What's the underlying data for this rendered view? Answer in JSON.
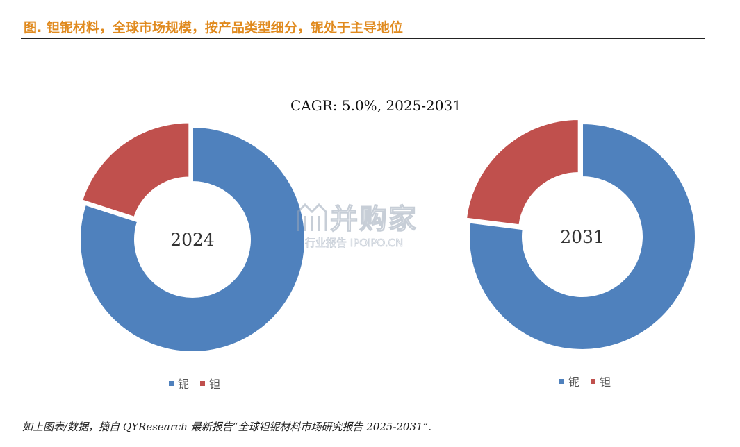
{
  "header": {
    "title": "图.  钽铌材料，全球市场规模，按产品类型细分，铌处于主导地位"
  },
  "cagr_text": "CAGR:   5.0%, 2025-2031",
  "watermark": {
    "main": "并购家",
    "sub": "行业报告  IPOIPO.CN"
  },
  "footnote": "如上图表/数据，摘自 QYResearch 最新报告“全球钽铌材料市场研究报告 2025-2031”.",
  "colors": {
    "niobium": "#4f81bd",
    "tantalum": "#c0504d",
    "title": "#e08a1e"
  },
  "chart_data": [
    {
      "type": "pie",
      "center_label": "2024",
      "categories": [
        "铌",
        "钽"
      ],
      "values": [
        80,
        20
      ],
      "legend": "bottom"
    },
    {
      "type": "pie",
      "center_label": "2031",
      "categories": [
        "铌",
        "钽"
      ],
      "values": [
        77,
        23
      ],
      "legend": "bottom"
    }
  ]
}
